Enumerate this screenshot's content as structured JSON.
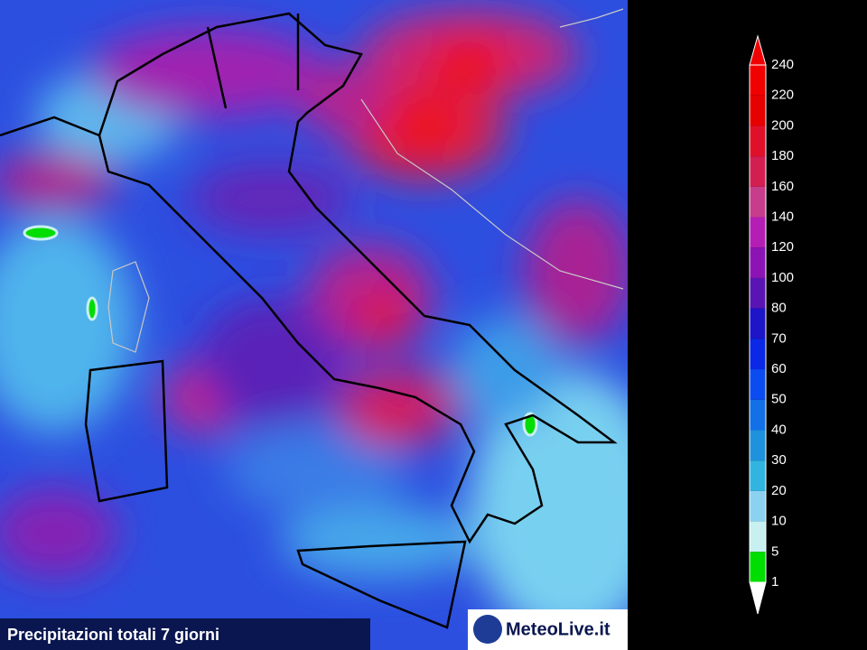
{
  "caption": "Precipitazioni totali 7 giorni",
  "logo": "MeteoLive.it",
  "legend": {
    "labels": [
      240,
      220,
      200,
      180,
      160,
      140,
      120,
      100,
      80,
      70,
      60,
      50,
      40,
      30,
      20,
      10,
      5,
      1
    ],
    "colors": [
      "#f00000",
      "#e60000",
      "#e0102a",
      "#d21e50",
      "#c83c8c",
      "#b41eb4",
      "#8c14b4",
      "#5a14b4",
      "#1e14c8",
      "#0a28e6",
      "#0a4cf0",
      "#1470e6",
      "#1e92dc",
      "#32b4e0",
      "#8cd2f0",
      "#c8f0f0",
      "#00dd00"
    ],
    "over_color": "#f00000",
    "under_color": "#ffffff"
  }
}
